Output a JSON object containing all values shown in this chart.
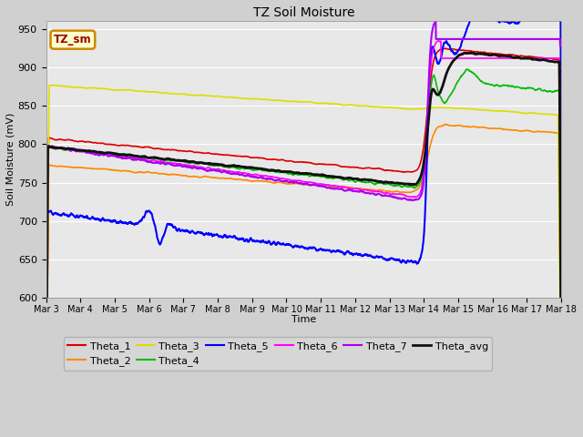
{
  "title": "TZ Soil Moisture",
  "xlabel": "Time",
  "ylabel": "Soil Moisture (mV)",
  "ylim": [
    600,
    960
  ],
  "yticks": [
    600,
    650,
    700,
    750,
    800,
    850,
    900,
    950
  ],
  "fig_facecolor": "#d0d0d0",
  "ax_facecolor": "#e8e8e8",
  "label_box_text": "TZ_sm",
  "label_box_color": "#ffffcc",
  "label_box_border": "#cc8800",
  "label_box_text_color": "#990000",
  "series_order": [
    "Theta_1",
    "Theta_2",
    "Theta_3",
    "Theta_4",
    "Theta_5",
    "Theta_6",
    "Theta_7",
    "Theta_avg"
  ],
  "series": {
    "Theta_1": {
      "color": "#dd0000",
      "lw": 1.2
    },
    "Theta_2": {
      "color": "#ff8800",
      "lw": 1.2
    },
    "Theta_3": {
      "color": "#dddd00",
      "lw": 1.2
    },
    "Theta_4": {
      "color": "#00bb00",
      "lw": 1.2
    },
    "Theta_5": {
      "color": "#0000ff",
      "lw": 1.5
    },
    "Theta_6": {
      "color": "#ff00ff",
      "lw": 1.2
    },
    "Theta_7": {
      "color": "#aa00ee",
      "lw": 1.5
    },
    "Theta_avg": {
      "color": "#111111",
      "lw": 2.0
    }
  },
  "n_days": 15,
  "start_day": 3,
  "event_day": 11.1
}
